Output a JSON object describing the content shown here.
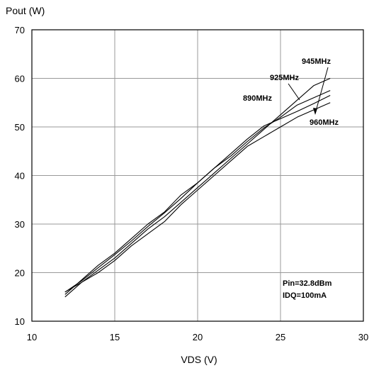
{
  "chart_data": {
    "type": "line",
    "title": "",
    "ylabel": "Pout (W)",
    "xlabel": "VDS (V)",
    "xlim": [
      10,
      30
    ],
    "ylim": [
      10,
      70
    ],
    "xticks": [
      10,
      15,
      20,
      25,
      30
    ],
    "yticks": [
      10,
      20,
      30,
      40,
      50,
      60,
      70
    ],
    "grid": true,
    "series": [
      {
        "name": "890MHz",
        "x": [
          12,
          13,
          14,
          15,
          16,
          17,
          18,
          19,
          20,
          21,
          22,
          23,
          24,
          25,
          26,
          27,
          28
        ],
        "y": [
          16.0,
          18.3,
          21.0,
          23.7,
          26.5,
          29.5,
          32.3,
          35.3,
          38.5,
          41.5,
          44.5,
          47.5,
          50.2,
          51.7,
          53.2,
          54.8,
          56.5
        ]
      },
      {
        "name": "925MHz",
        "x": [
          12,
          13,
          14,
          15,
          16,
          17,
          18,
          19,
          20,
          21,
          22,
          23,
          24,
          25,
          26,
          27,
          28
        ],
        "y": [
          15.5,
          18.5,
          21.5,
          24.0,
          27.0,
          30.0,
          32.5,
          36.0,
          38.5,
          41.5,
          44.0,
          47.0,
          49.8,
          52.0,
          54.5,
          56.0,
          57.5
        ]
      },
      {
        "name": "945MHz",
        "x": [
          12,
          13,
          14,
          15,
          16,
          17,
          18,
          19,
          20,
          21,
          22,
          23,
          24,
          25,
          26,
          27,
          28
        ],
        "y": [
          15.0,
          18.0,
          20.5,
          23.0,
          26.0,
          29.0,
          31.5,
          34.5,
          37.5,
          40.5,
          43.5,
          46.5,
          49.5,
          52.5,
          55.5,
          58.5,
          60.0
        ]
      },
      {
        "name": "960MHz",
        "x": [
          12,
          13,
          14,
          15,
          16,
          17,
          18,
          19,
          20,
          21,
          22,
          23,
          24,
          25,
          26,
          27,
          28
        ],
        "y": [
          16.0,
          18.0,
          20.0,
          22.5,
          25.5,
          28.0,
          30.5,
          34.0,
          37.0,
          40.0,
          43.0,
          46.0,
          48.0,
          50.0,
          52.0,
          53.5,
          55.0
        ]
      }
    ],
    "annotations": [
      "Pin=32.8dBm",
      "IDQ=100mA"
    ]
  }
}
